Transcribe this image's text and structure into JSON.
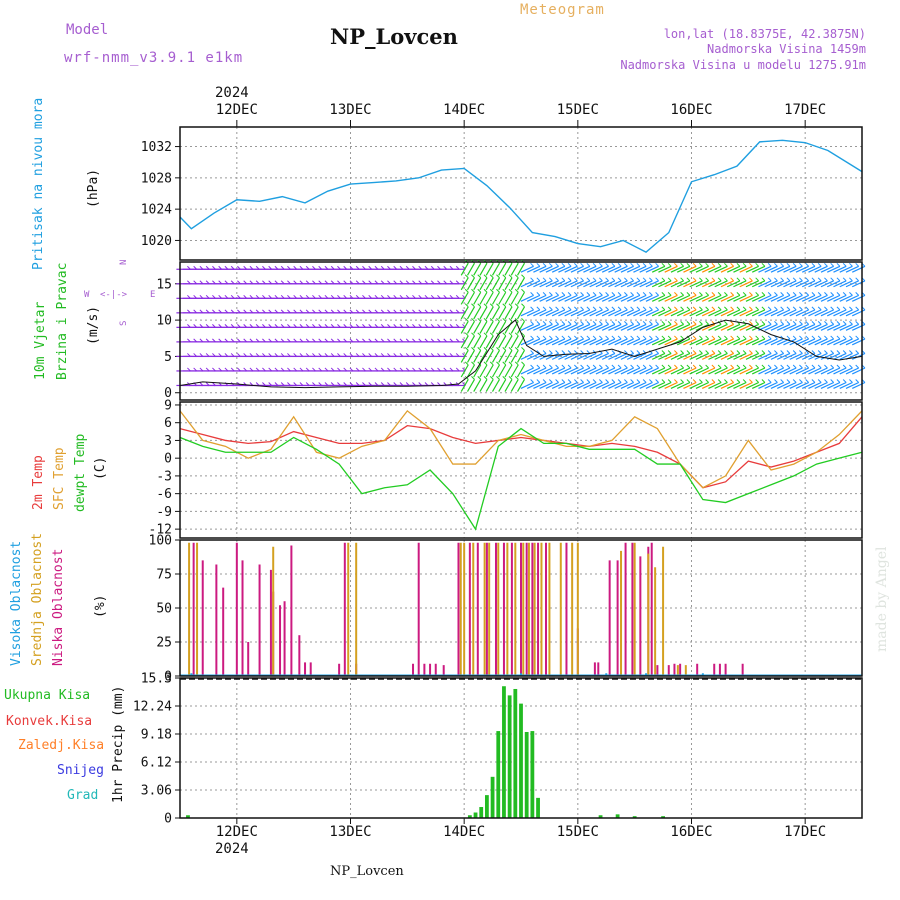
{
  "header": {
    "model_label": "Model",
    "model_name": "wrf-nmm_v3.9.1 e1km",
    "station": "NP_Lovcen",
    "meteogram_label": "Meteogram",
    "lonlat": "lon,lat (18.8375E, 42.3875N)",
    "elevation": "Nadmorska Visina 1459m",
    "model_elevation": "Nadmorska Visina u modelu 1275.91m",
    "year": "2024",
    "footer_station": "NP_Lovcen",
    "credit": "made by Angel"
  },
  "axis": {
    "days": [
      "12DEC",
      "13DEC",
      "14DEC",
      "15DEC",
      "16DEC",
      "17DEC"
    ],
    "day_positions": [
      12,
      13,
      14,
      15,
      16,
      17
    ],
    "x_range": [
      11.5,
      17.5
    ]
  },
  "colors": {
    "pressure": "#1f9fe0",
    "wind_low": "#8a2be2",
    "wind_mid": "#1e90ff",
    "wind_green": "#22cc22",
    "wind_high": "#ff8c00",
    "temp2m": "#e83c3c",
    "sfc": "#e0a030",
    "dewpt": "#22cc22",
    "high_cloud": "#1f9fe0",
    "mid_cloud": "#d4a020",
    "low_cloud": "#cc1a80",
    "total_precip": "#22bb22",
    "conv_precip": "#e83c3c",
    "frz_precip": "#ff7f27",
    "snow": "#3a3ae0",
    "graupel": "#22b8b8"
  },
  "panels": {
    "pressure": {
      "labels": [
        "Pritisak na nivou mora",
        "(hPa)"
      ],
      "ticks": [
        "1020",
        "1024",
        "1028",
        "1032"
      ]
    },
    "wind": {
      "labels": [
        "10m Vjetar",
        "Brzina i Pravac",
        "(m/s)"
      ],
      "compass": [
        "N",
        "W",
        "E",
        "S"
      ],
      "ticks": [
        "0",
        "5",
        "10",
        "15"
      ]
    },
    "temp": {
      "labels": [
        "2m Temp",
        "SFC Temp",
        "dewpt Temp",
        "(C)"
      ],
      "ticks": [
        "-12",
        "-9",
        "-6",
        "-3",
        "0",
        "3",
        "6",
        "9"
      ]
    },
    "cloud": {
      "labels": [
        "Visoka Oblacnost",
        "Srednja Oblacnost",
        "Niska Oblacnost",
        "(%)"
      ],
      "ticks": [
        "0",
        "25",
        "50",
        "75",
        "100"
      ]
    },
    "precip": {
      "legend": [
        "Ukupna Kisa",
        "Konvek.Kisa",
        "Zaledj.Kisa",
        "Snijeg",
        "Grad"
      ],
      "ylabel": "1hr Precip (mm)",
      "ticks": [
        "0",
        "3.06",
        "6.12",
        "9.18",
        "12.24",
        "15.3"
      ]
    }
  },
  "chart_data": [
    {
      "type": "line",
      "ylabel": "(hPa)",
      "ylim": [
        1017.5,
        1034.5
      ],
      "series": [
        {
          "x": [
            11.5,
            11.6,
            11.8,
            12.0,
            12.2,
            12.4,
            12.6,
            12.8,
            13.0,
            13.2,
            13.4,
            13.6,
            13.8,
            14.0,
            14.2,
            14.4,
            14.6,
            14.8,
            15.0,
            15.2,
            15.4,
            15.6,
            15.8,
            16.0,
            16.2,
            16.4,
            16.6,
            16.8,
            17.0,
            17.2,
            17.5
          ],
          "y": [
            1023,
            1021.5,
            1023.5,
            1025.2,
            1025.0,
            1025.6,
            1024.8,
            1026.3,
            1027.2,
            1027.4,
            1027.6,
            1028.0,
            1029.0,
            1029.2,
            1027.0,
            1024.2,
            1021.0,
            1020.5,
            1019.6,
            1019.2,
            1020.0,
            1018.5,
            1021.0,
            1027.5,
            1028.4,
            1029.5,
            1032.6,
            1032.8,
            1032.5,
            1031.5,
            1028.8
          ]
        }
      ]
    },
    {
      "type": "line",
      "ylabel": "(m/s)",
      "ylim": [
        -1,
        18
      ],
      "series": [
        {
          "x": [
            11.5,
            11.7,
            12.0,
            12.3,
            12.6,
            12.9,
            13.2,
            13.5,
            13.8,
            13.95,
            14.1,
            14.3,
            14.45,
            14.55,
            14.7,
            14.9,
            15.1,
            15.3,
            15.5,
            15.7,
            15.9,
            16.1,
            16.3,
            16.5,
            16.7,
            16.9,
            17.1,
            17.3,
            17.5
          ],
          "y": [
            1,
            1.5,
            1.2,
            0.8,
            0.7,
            0.8,
            0.9,
            0.9,
            1.0,
            1.2,
            3,
            8,
            10,
            6.5,
            5,
            5.3,
            5.4,
            6,
            5,
            6,
            7,
            9,
            10,
            9.5,
            8,
            7,
            5,
            4.5,
            5
          ]
        }
      ]
    },
    {
      "type": "line",
      "ylabel": "(C)",
      "ylim": [
        -13.5,
        9.5
      ],
      "series": [
        {
          "x": [
            11.5,
            11.7,
            11.9,
            12.1,
            12.3,
            12.5,
            12.7,
            12.9,
            13.1,
            13.3,
            13.5,
            13.7,
            13.9,
            14.1,
            14.3,
            14.5,
            14.7,
            14.9,
            15.1,
            15.3,
            15.5,
            15.7,
            15.9,
            16.1,
            16.3,
            16.5,
            16.7,
            16.9,
            17.1,
            17.3,
            17.5
          ],
          "y": [
            5,
            4,
            3,
            2.5,
            2.8,
            4.5,
            3.5,
            2.5,
            2.5,
            3,
            5.5,
            5,
            3.5,
            2.5,
            3,
            3.5,
            3,
            2.5,
            2,
            2.5,
            2,
            1,
            -1,
            -5,
            -4,
            -0.5,
            -1.5,
            -0.5,
            1,
            2.5,
            7
          ]
        },
        {
          "x": [
            11.5,
            11.7,
            11.9,
            12.1,
            12.3,
            12.5,
            12.7,
            12.9,
            13.1,
            13.3,
            13.5,
            13.7,
            13.9,
            14.1,
            14.3,
            14.5,
            14.7,
            14.9,
            15.1,
            15.3,
            15.5,
            15.7,
            15.9,
            16.1,
            16.3,
            16.5,
            16.7,
            16.9,
            17.1,
            17.3,
            17.5
          ],
          "y": [
            8,
            3,
            2,
            0,
            1.5,
            7,
            1,
            0,
            2,
            3,
            8,
            5,
            -1,
            -1,
            3,
            4,
            3,
            2,
            2,
            3,
            7,
            5,
            -1,
            -5,
            -3,
            3,
            -2,
            -1,
            1,
            4,
            8
          ]
        },
        {
          "x": [
            11.5,
            11.7,
            11.9,
            12.1,
            12.3,
            12.5,
            12.7,
            12.9,
            13.1,
            13.3,
            13.5,
            13.7,
            13.9,
            14.1,
            14.3,
            14.5,
            14.7,
            14.9,
            15.1,
            15.3,
            15.5,
            15.7,
            15.9,
            16.1,
            16.3,
            16.5,
            16.7,
            16.9,
            17.1,
            17.3,
            17.5
          ],
          "y": [
            3.5,
            2,
            1,
            1,
            1,
            3.5,
            1.5,
            -1,
            -6,
            -5,
            -4.5,
            -2,
            -6,
            -12,
            2,
            5,
            2.5,
            2.5,
            1.5,
            1.5,
            1.5,
            -1,
            -1,
            -7,
            -7.5,
            -6,
            -4.5,
            -3,
            -1,
            0,
            1
          ]
        }
      ]
    },
    {
      "type": "bar",
      "ylabel": "(%)",
      "ylim": [
        0,
        100
      ],
      "series": [
        {
          "x": [
            11.62,
            11.7,
            11.82,
            11.88,
            12.0,
            12.05,
            12.1,
            12.2,
            12.3,
            12.32,
            12.38,
            12.42,
            12.48,
            12.55,
            12.6,
            12.65,
            12.9,
            12.95,
            13.05,
            13.55,
            13.6,
            13.65,
            13.7,
            13.75,
            13.82,
            13.95,
            14.05,
            14.12,
            14.2,
            14.28,
            14.35,
            14.42,
            14.5,
            14.55,
            14.6,
            14.65,
            14.72,
            14.9,
            15.0,
            15.15,
            15.18,
            15.28,
            15.35,
            15.42,
            15.48,
            15.55,
            15.62,
            15.65,
            15.7,
            15.8,
            15.85,
            15.9,
            16.05,
            16.2,
            16.25,
            16.3,
            16.45
          ],
          "values": [
            98,
            85,
            82,
            65,
            98,
            85,
            25,
            82,
            78,
            62,
            52,
            55,
            96,
            30,
            10,
            10,
            9,
            98,
            9,
            9,
            98,
            9,
            9,
            9,
            8,
            98,
            98,
            98,
            98,
            98,
            98,
            98,
            98,
            98,
            98,
            98,
            98,
            98,
            35,
            10,
            10,
            85,
            85,
            98,
            98,
            88,
            95,
            98,
            8,
            8,
            9,
            9,
            9,
            9,
            9,
            9,
            9
          ]
        },
        {
          "x": [
            11.58,
            11.65,
            12.32,
            12.98,
            13.05,
            13.97,
            14.0,
            14.08,
            14.18,
            14.22,
            14.3,
            14.38,
            14.45,
            14.52,
            14.57,
            14.62,
            14.68,
            14.75,
            14.85,
            14.95,
            15.0,
            15.38,
            15.5,
            15.62,
            15.68,
            15.75,
            15.88,
            15.95
          ],
          "values": [
            98,
            98,
            95,
            98,
            98,
            98,
            98,
            98,
            98,
            98,
            98,
            98,
            98,
            98,
            98,
            98,
            98,
            98,
            98,
            98,
            98,
            92,
            98,
            90,
            80,
            95,
            8,
            8
          ]
        },
        {
          "x": [
            11.6,
            14.5,
            15.25,
            15.6,
            16.1
          ],
          "values": [
            2,
            2,
            2,
            2,
            2
          ]
        }
      ]
    },
    {
      "type": "bar",
      "ylabel": "1hr Precip (mm)",
      "ylim": [
        0,
        15.3
      ],
      "series": [
        {
          "x": [
            11.57,
            14.05,
            14.1,
            14.15,
            14.2,
            14.25,
            14.3,
            14.35,
            14.4,
            14.45,
            14.5,
            14.55,
            14.6,
            14.65,
            15.2,
            15.35,
            15.5,
            15.75
          ],
          "values": [
            0.3,
            0.3,
            0.6,
            1.2,
            2.5,
            4.5,
            9.5,
            14.4,
            13.4,
            14.1,
            12.5,
            9.4,
            9.5,
            2.2,
            0.3,
            0.4,
            0.2,
            0.2
          ]
        }
      ]
    }
  ]
}
